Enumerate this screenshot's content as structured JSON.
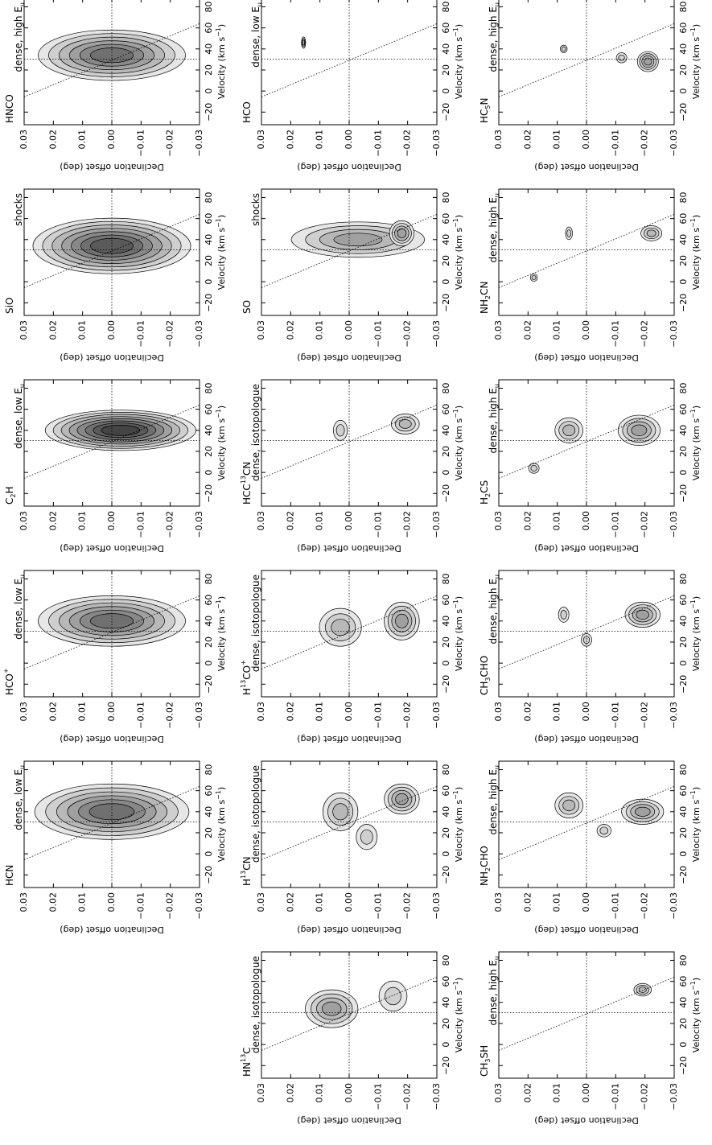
{
  "axes": {
    "declination_label": "Declination offset (deg)",
    "velocity_label": [
      {
        "text": "Velocity (km s"
      },
      {
        "text": "−1",
        "script": "sup"
      },
      {
        "text": ")"
      }
    ],
    "declination_lim": [
      0.03,
      -0.03
    ],
    "declination_ticks": [
      0.03,
      0.02,
      0.01,
      {
        "value": 0,
        "label": "0.00"
      },
      {
        "value": -0.01,
        "label": "−0.01"
      },
      {
        "value": -0.02,
        "label": "−0.02"
      },
      {
        "value": -0.03,
        "label": "−0.03"
      }
    ],
    "velocity_lim": [
      -32,
      88
    ],
    "velocity_ticks": [
      {
        "value": -20,
        "label": "−20"
      },
      0,
      20,
      40,
      60,
      80
    ]
  },
  "panels": [
    {
      "molecule": [
        {
          "text": "HNCO"
        }
      ],
      "description": [
        {
          "text": "dense, high E"
        },
        {
          "text": "u",
          "script": "sub"
        }
      ]
    },
    {
      "molecule": [
        {
          "text": "HCO"
        }
      ],
      "description": [
        {
          "text": "dense, low E"
        },
        {
          "text": "u",
          "script": "sub"
        }
      ]
    },
    {
      "molecule": [
        {
          "text": "HC"
        },
        {
          "text": "5",
          "script": "sub"
        },
        {
          "text": "N"
        }
      ],
      "description": [
        {
          "text": "dense, high E"
        },
        {
          "text": "u",
          "script": "sub"
        }
      ]
    },
    {
      "molecule": [
        {
          "text": "SiO"
        }
      ],
      "description": [
        {
          "text": "shocks"
        }
      ]
    },
    {
      "molecule": [
        {
          "text": "SO"
        }
      ],
      "description": [
        {
          "text": "shocks"
        }
      ]
    },
    {
      "molecule": [
        {
          "text": "NH"
        },
        {
          "text": "2",
          "script": "sub"
        },
        {
          "text": "CN"
        }
      ],
      "description": [
        {
          "text": "dense, high E"
        },
        {
          "text": "u",
          "script": "sub"
        }
      ]
    },
    {
      "molecule": [
        {
          "text": "C"
        },
        {
          "text": "2",
          "script": "sub"
        },
        {
          "text": "H"
        }
      ],
      "description": [
        {
          "text": "dense, low E"
        },
        {
          "text": "u",
          "script": "sub"
        }
      ]
    },
    {
      "molecule": [
        {
          "text": "HCC"
        },
        {
          "text": "13",
          "script": "sup"
        },
        {
          "text": "CN"
        }
      ],
      "description": [
        {
          "text": "dense, isotopologue"
        }
      ]
    },
    {
      "molecule": [
        {
          "text": "H"
        },
        {
          "text": "2",
          "script": "sub"
        },
        {
          "text": "CS"
        }
      ],
      "description": [
        {
          "text": "dense, high E"
        },
        {
          "text": "u",
          "script": "sub"
        }
      ]
    },
    {
      "molecule": [
        {
          "text": "HCO"
        },
        {
          "text": "+",
          "script": "sup"
        }
      ],
      "description": [
        {
          "text": "dense, low E"
        },
        {
          "text": "u",
          "script": "sub"
        }
      ]
    },
    {
      "molecule": [
        {
          "text": "H"
        },
        {
          "text": "13",
          "script": "sup"
        },
        {
          "text": "CO"
        },
        {
          "text": "+",
          "script": "sup"
        }
      ],
      "description": [
        {
          "text": "dense, isotopologue"
        }
      ]
    },
    {
      "molecule": [
        {
          "text": "CH"
        },
        {
          "text": "3",
          "script": "sub"
        },
        {
          "text": "CHO"
        }
      ],
      "description": [
        {
          "text": "dense, high E"
        },
        {
          "text": "u",
          "script": "sub"
        }
      ]
    },
    {
      "molecule": [
        {
          "text": "HCN"
        }
      ],
      "description": [
        {
          "text": "dense, low E"
        },
        {
          "text": "u",
          "script": "sub"
        }
      ]
    },
    {
      "molecule": [
        {
          "text": "H"
        },
        {
          "text": "13",
          "script": "sup"
        },
        {
          "text": "CN"
        }
      ],
      "description": [
        {
          "text": "dense, isotopologue"
        }
      ]
    },
    {
      "molecule": [
        {
          "text": "NH"
        },
        {
          "text": "2",
          "script": "sub"
        },
        {
          "text": "CHO"
        }
      ],
      "description": [
        {
          "text": "dense, high E"
        },
        {
          "text": "u",
          "script": "sub"
        }
      ]
    },
    {
      "molecule": [
        {
          "text": "HN"
        },
        {
          "text": "13",
          "script": "sup"
        },
        {
          "text": "C"
        }
      ],
      "description": [
        {
          "text": "dense, isotopologue"
        }
      ]
    },
    {
      "molecule": [
        {
          "text": "CH"
        },
        {
          "text": "3",
          "script": "sub"
        },
        {
          "text": "SH"
        }
      ],
      "description": [
        {
          "text": "dense, high E"
        },
        {
          "text": "u",
          "script": "sub"
        }
      ]
    }
  ]
}
